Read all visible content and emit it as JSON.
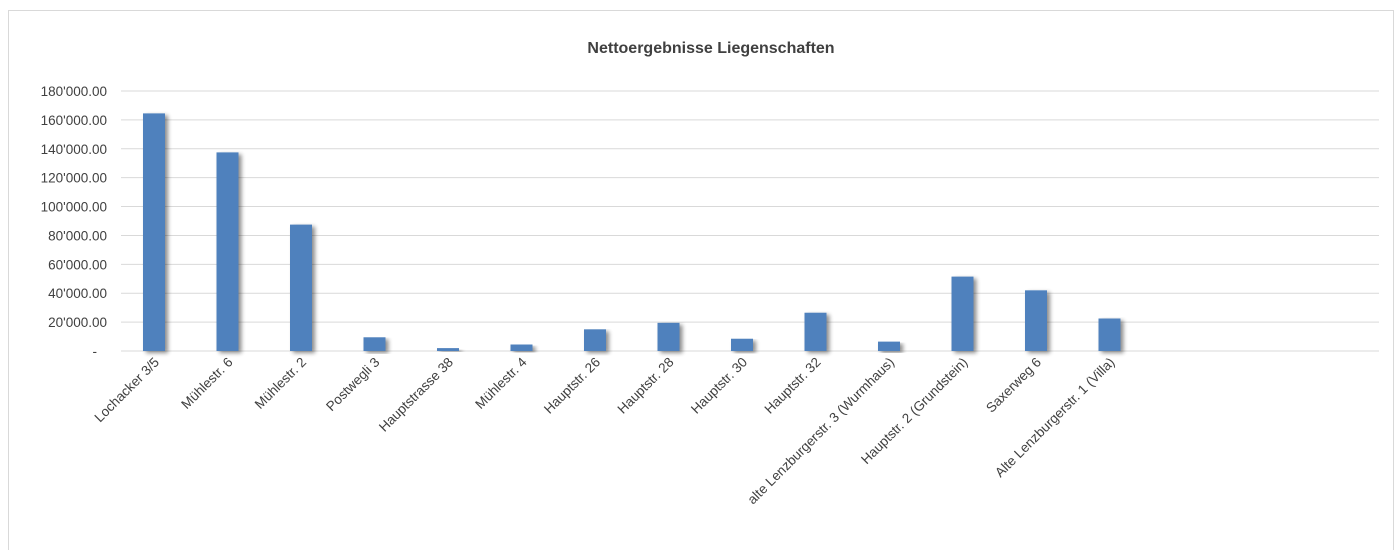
{
  "chart_data": {
    "type": "bar",
    "title": "Nettoergebnisse Liegenschaften",
    "xlabel": "",
    "ylabel": "",
    "ylim": [
      0,
      180000
    ],
    "y_ticks": [
      {
        "value": 0,
        "label": "-"
      },
      {
        "value": 20000,
        "label": "20'000.00"
      },
      {
        "value": 40000,
        "label": "40'000.00"
      },
      {
        "value": 60000,
        "label": "60'000.00"
      },
      {
        "value": 80000,
        "label": "80'000.00"
      },
      {
        "value": 100000,
        "label": "100'000.00"
      },
      {
        "value": 120000,
        "label": "120'000.00"
      },
      {
        "value": 140000,
        "label": "140'000.00"
      },
      {
        "value": 160000,
        "label": "160'000.00"
      },
      {
        "value": 180000,
        "label": "180'000.00"
      }
    ],
    "grid": true,
    "legend": "none",
    "bar_color": "#4f81bd",
    "categories": [
      "Lochacker 3/5",
      "Mühlestr. 6",
      "Mühlestr. 2",
      "Postwegli 3",
      "Hauptstrasse 38",
      "Mühlestr. 4",
      "Hauptstr. 26",
      "Hauptstr. 28",
      "Hauptstr. 30",
      "Hauptstr. 32",
      "alte Lenzburgerstr. 3 (Wurmhaus)",
      "Hauptstr. 2 (Grundstein)",
      "Saxerweg 6",
      "Alte Lenzburgerstr. 1 (Villa)"
    ],
    "values": [
      164500,
      137500,
      87500,
      9500,
      2000,
      4500,
      15000,
      19500,
      8500,
      26500,
      6500,
      51500,
      42000,
      22500
    ]
  }
}
